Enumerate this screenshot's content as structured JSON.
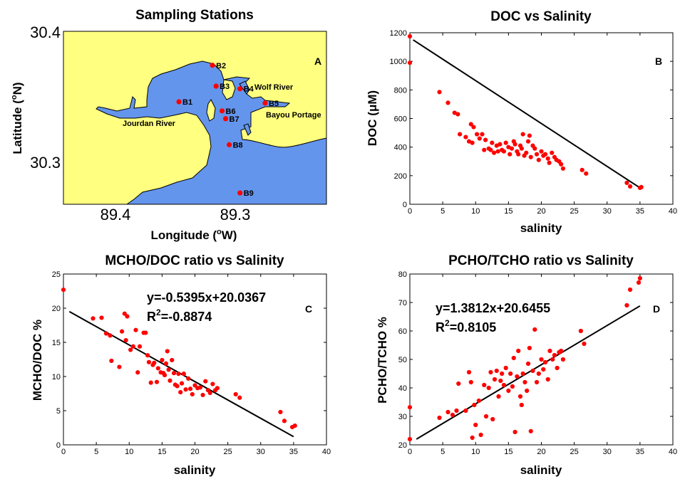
{
  "colors": {
    "land": "#ffff80",
    "water": "#6495ed",
    "point": "#ff0000",
    "line": "#000000"
  },
  "chart_data": [
    {
      "type": "scatter",
      "panel": "A",
      "title": "Sampling Stations",
      "xlabel_main": "Longitude (",
      "xlabel_sup": "o",
      "xlabel_end": "W)",
      "ylabel_main": "Latitude (",
      "ylabel_sup": "o",
      "ylabel_end": "N)",
      "xticks": [
        "89.4",
        "89.3"
      ],
      "yticks": [
        "30.4",
        "30.3"
      ],
      "stations": [
        {
          "name": "B1",
          "lon": 89.347,
          "lat": 30.347
        },
        {
          "name": "B2",
          "lon": 89.319,
          "lat": 30.375
        },
        {
          "name": "B3",
          "lon": 89.316,
          "lat": 30.359
        },
        {
          "name": "B4",
          "lon": 89.296,
          "lat": 30.357
        },
        {
          "name": "B5",
          "lon": 89.275,
          "lat": 30.346
        },
        {
          "name": "B6",
          "lon": 89.311,
          "lat": 30.34
        },
        {
          "name": "B7",
          "lon": 89.308,
          "lat": 30.334
        },
        {
          "name": "B8",
          "lon": 89.305,
          "lat": 30.314
        },
        {
          "name": "B9",
          "lon": 89.296,
          "lat": 30.277
        }
      ],
      "places": {
        "jourdan": "Jourdan River",
        "wolf": "Wolf River",
        "bayou": "Bayou Portage"
      }
    },
    {
      "type": "scatter",
      "panel": "B",
      "title": "DOC vs Salinity",
      "xlabel": "salinity",
      "ylabel_main": "DOC (",
      "ylabel_mu": "μ",
      "ylabel_end": "M)",
      "xlim": [
        0,
        40
      ],
      "ylim": [
        0,
        1200
      ],
      "xticks": [
        0,
        5,
        10,
        15,
        20,
        25,
        30,
        35,
        40
      ],
      "yticks": [
        0,
        200,
        400,
        600,
        800,
        1000,
        1200
      ],
      "line": {
        "x": [
          0.5,
          35
        ],
        "y": [
          1150,
          115
        ]
      },
      "points": [
        [
          0,
          1175
        ],
        [
          0,
          990
        ],
        [
          4.5,
          785
        ],
        [
          5.8,
          710
        ],
        [
          6.8,
          640
        ],
        [
          7.3,
          630
        ],
        [
          7.6,
          490
        ],
        [
          8.5,
          470
        ],
        [
          9.0,
          440
        ],
        [
          9.3,
          560
        ],
        [
          9.7,
          540
        ],
        [
          9.5,
          430
        ],
        [
          10.2,
          490
        ],
        [
          10.6,
          460
        ],
        [
          11.0,
          490
        ],
        [
          11.3,
          380
        ],
        [
          11.5,
          450
        ],
        [
          12.0,
          390
        ],
        [
          12.3,
          380
        ],
        [
          12.5,
          430
        ],
        [
          12.8,
          360
        ],
        [
          13.2,
          410
        ],
        [
          13.4,
          370
        ],
        [
          13.7,
          420
        ],
        [
          14.0,
          380
        ],
        [
          14.3,
          370
        ],
        [
          14.6,
          430
        ],
        [
          15.0,
          400
        ],
        [
          15.2,
          350
        ],
        [
          15.5,
          390
        ],
        [
          15.8,
          440
        ],
        [
          16.0,
          420
        ],
        [
          16.3,
          370
        ],
        [
          16.5,
          350
        ],
        [
          16.8,
          410
        ],
        [
          17.0,
          390
        ],
        [
          17.2,
          490
        ],
        [
          17.4,
          340
        ],
        [
          17.7,
          360
        ],
        [
          18.0,
          440
        ],
        [
          18.2,
          480
        ],
        [
          18.4,
          330
        ],
        [
          18.7,
          410
        ],
        [
          19.0,
          390
        ],
        [
          19.3,
          350
        ],
        [
          19.6,
          310
        ],
        [
          20.0,
          370
        ],
        [
          20.3,
          340
        ],
        [
          20.6,
          350
        ],
        [
          21.0,
          320
        ],
        [
          21.2,
          290
        ],
        [
          21.6,
          360
        ],
        [
          22.0,
          330
        ],
        [
          22.3,
          310
        ],
        [
          22.7,
          300
        ],
        [
          23.0,
          280
        ],
        [
          23.3,
          250
        ],
        [
          26.2,
          240
        ],
        [
          26.8,
          215
        ],
        [
          33.0,
          150
        ],
        [
          33.5,
          125
        ],
        [
          35.0,
          115
        ],
        [
          35.2,
          120
        ]
      ]
    },
    {
      "type": "scatter",
      "panel": "C",
      "title": "MCHO/DOC ratio vs Salinity",
      "xlabel": "salinity",
      "ylabel": "MCHO/DOC %",
      "equation": "y=-0.5395x+20.0367",
      "r2_prefix": "R",
      "r2_sup": "2",
      "r2_value": "=-0.8874",
      "xlim": [
        0,
        40
      ],
      "ylim": [
        0,
        25
      ],
      "xticks": [
        0,
        5,
        10,
        15,
        20,
        25,
        30,
        35,
        40
      ],
      "yticks": [
        0,
        5,
        10,
        15,
        20,
        25
      ],
      "line": {
        "x": [
          0.9,
          35
        ],
        "y": [
          19.5,
          1.2
        ]
      },
      "points": [
        [
          0,
          22.7
        ],
        [
          4.5,
          18.5
        ],
        [
          5.8,
          18.6
        ],
        [
          6.5,
          16.3
        ],
        [
          7.1,
          16.0
        ],
        [
          7.3,
          12.3
        ],
        [
          8.5,
          11.4
        ],
        [
          8.9,
          16.6
        ],
        [
          9.3,
          19.2
        ],
        [
          9.7,
          18.8
        ],
        [
          9.5,
          15.3
        ],
        [
          10.2,
          13.9
        ],
        [
          10.6,
          14.4
        ],
        [
          11.0,
          16.8
        ],
        [
          11.3,
          10.6
        ],
        [
          11.6,
          14.4
        ],
        [
          12.2,
          16.4
        ],
        [
          12.5,
          16.4
        ],
        [
          12.8,
          13.1
        ],
        [
          13.0,
          12.1
        ],
        [
          13.3,
          9.1
        ],
        [
          13.6,
          11.7
        ],
        [
          13.8,
          12.0
        ],
        [
          14.2,
          9.2
        ],
        [
          14.4,
          11.2
        ],
        [
          14.8,
          10.6
        ],
        [
          15.0,
          12.4
        ],
        [
          15.2,
          10.5
        ],
        [
          15.4,
          10.2
        ],
        [
          15.6,
          11.9
        ],
        [
          15.8,
          13.7
        ],
        [
          16.0,
          11.0
        ],
        [
          16.2,
          9.4
        ],
        [
          16.5,
          12.4
        ],
        [
          16.8,
          10.5
        ],
        [
          17.0,
          8.8
        ],
        [
          17.3,
          8.6
        ],
        [
          17.5,
          10.4
        ],
        [
          17.8,
          7.7
        ],
        [
          18.0,
          9.0
        ],
        [
          18.3,
          10.4
        ],
        [
          18.6,
          8.1
        ],
        [
          19.0,
          9.7
        ],
        [
          19.3,
          8.2
        ],
        [
          19.6,
          7.4
        ],
        [
          20.0,
          8.7
        ],
        [
          20.4,
          8.3
        ],
        [
          20.8,
          8.4
        ],
        [
          21.2,
          7.3
        ],
        [
          21.6,
          9.3
        ],
        [
          22.0,
          8.0
        ],
        [
          22.3,
          7.6
        ],
        [
          22.7,
          8.9
        ],
        [
          23.1,
          8.0
        ],
        [
          23.4,
          8.3
        ],
        [
          26.2,
          7.4
        ],
        [
          26.8,
          6.9
        ],
        [
          33.0,
          4.8
        ],
        [
          33.6,
          3.5
        ],
        [
          34.8,
          2.6
        ],
        [
          35.2,
          2.8
        ]
      ]
    },
    {
      "type": "scatter",
      "panel": "D",
      "title": "PCHO/TCHO ratio vs Salinity",
      "xlabel": "salinity",
      "ylabel": "PCHO/TCHO %",
      "equation": "y=1.3812x+20.6455",
      "r2_prefix": "R",
      "r2_sup": "2",
      "r2_value": "=0.8105",
      "xlim": [
        0,
        40
      ],
      "ylim": [
        20,
        80
      ],
      "xticks": [
        0,
        5,
        10,
        15,
        20,
        25,
        30,
        35,
        40
      ],
      "yticks": [
        20,
        30,
        40,
        50,
        60,
        70,
        80
      ],
      "line": {
        "x": [
          1.0,
          35
        ],
        "y": [
          22.0,
          68.8
        ]
      },
      "points": [
        [
          0,
          22.0
        ],
        [
          0,
          33.2
        ],
        [
          4.5,
          29.5
        ],
        [
          5.8,
          31.5
        ],
        [
          6.5,
          30.5
        ],
        [
          7.1,
          32.0
        ],
        [
          7.4,
          41.5
        ],
        [
          8.5,
          32.0
        ],
        [
          9.0,
          45.5
        ],
        [
          9.3,
          42.0
        ],
        [
          9.5,
          22.5
        ],
        [
          9.8,
          34.0
        ],
        [
          10.0,
          27.0
        ],
        [
          10.5,
          35.5
        ],
        [
          10.8,
          23.5
        ],
        [
          11.3,
          41.0
        ],
        [
          11.6,
          30.0
        ],
        [
          12.0,
          40.0
        ],
        [
          12.3,
          45.5
        ],
        [
          12.6,
          29.0
        ],
        [
          12.9,
          43.0
        ],
        [
          13.2,
          46.0
        ],
        [
          13.5,
          37.0
        ],
        [
          13.8,
          42.5
        ],
        [
          14.0,
          45.0
        ],
        [
          14.3,
          41.0
        ],
        [
          14.6,
          47.0
        ],
        [
          15.0,
          39.0
        ],
        [
          15.3,
          45.0
        ],
        [
          15.6,
          40.5
        ],
        [
          15.8,
          50.5
        ],
        [
          16.0,
          24.5
        ],
        [
          16.3,
          44.0
        ],
        [
          16.5,
          53.0
        ],
        [
          16.8,
          37.0
        ],
        [
          17.0,
          34.0
        ],
        [
          17.2,
          45.0
        ],
        [
          17.5,
          42.0
        ],
        [
          17.8,
          39.0
        ],
        [
          18.0,
          48.5
        ],
        [
          18.2,
          54.0
        ],
        [
          18.4,
          24.8
        ],
        [
          18.7,
          46.0
        ],
        [
          19.0,
          60.5
        ],
        [
          19.3,
          42.0
        ],
        [
          19.6,
          45.0
        ],
        [
          20.0,
          50.0
        ],
        [
          20.3,
          46.5
        ],
        [
          20.6,
          49.0
        ],
        [
          21.0,
          43.0
        ],
        [
          21.3,
          53.0
        ],
        [
          21.7,
          50.0
        ],
        [
          22.0,
          51.5
        ],
        [
          22.4,
          47.0
        ],
        [
          22.7,
          52.5
        ],
        [
          23.0,
          53.0
        ],
        [
          23.3,
          50.0
        ],
        [
          26.0,
          60.0
        ],
        [
          26.5,
          55.5
        ],
        [
          33.0,
          69.0
        ],
        [
          33.5,
          74.5
        ],
        [
          34.8,
          77.0
        ],
        [
          35.0,
          78.5
        ]
      ]
    }
  ]
}
